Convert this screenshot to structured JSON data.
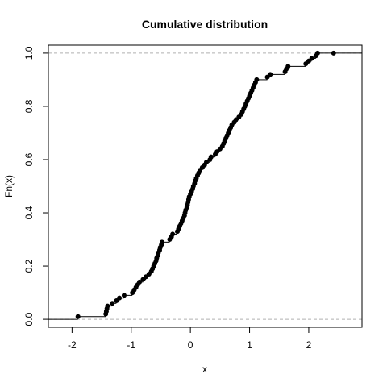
{
  "chart_data": {
    "type": "scatter",
    "title": "Cumulative distribution",
    "xlabel": "x",
    "ylabel": "Fn(x)",
    "xlim": [
      -2.4,
      2.9
    ],
    "ylim": [
      -0.03,
      1.03
    ],
    "grid": false,
    "x_ticks": [
      {
        "value": -2,
        "label": "-2"
      },
      {
        "value": -1,
        "label": "-1"
      },
      {
        "value": 0,
        "label": "0"
      },
      {
        "value": 1,
        "label": "1"
      },
      {
        "value": 2,
        "label": "2"
      }
    ],
    "y_ticks": [
      {
        "value": 0.0,
        "label": "0.0"
      },
      {
        "value": 0.2,
        "label": "0.2"
      },
      {
        "value": 0.4,
        "label": "0.4"
      },
      {
        "value": 0.6,
        "label": "0.6"
      },
      {
        "value": 0.8,
        "label": "0.8"
      },
      {
        "value": 1.0,
        "label": "1.0"
      }
    ],
    "reference_lines_y": [
      0,
      1
    ],
    "x": [
      -1.9,
      -1.43,
      -1.42,
      -1.41,
      -1.4,
      -1.32,
      -1.25,
      -1.2,
      -1.12,
      -0.98,
      -0.95,
      -0.92,
      -0.89,
      -0.86,
      -0.8,
      -0.75,
      -0.7,
      -0.66,
      -0.64,
      -0.62,
      -0.6,
      -0.58,
      -0.57,
      -0.55,
      -0.54,
      -0.52,
      -0.51,
      -0.49,
      -0.48,
      -0.35,
      -0.32,
      -0.3,
      -0.22,
      -0.2,
      -0.18,
      -0.16,
      -0.14,
      -0.12,
      -0.1,
      -0.09,
      -0.08,
      -0.06,
      -0.05,
      -0.04,
      -0.03,
      -0.02,
      0.0,
      0.02,
      0.04,
      0.05,
      0.07,
      0.08,
      0.1,
      0.12,
      0.14,
      0.16,
      0.2,
      0.24,
      0.27,
      0.33,
      0.35,
      0.42,
      0.45,
      0.5,
      0.54,
      0.56,
      0.58,
      0.6,
      0.62,
      0.64,
      0.66,
      0.68,
      0.7,
      0.74,
      0.77,
      0.82,
      0.86,
      0.88,
      0.9,
      0.92,
      0.94,
      0.96,
      0.98,
      1.0,
      1.02,
      1.04,
      1.06,
      1.08,
      1.1,
      1.12,
      1.3,
      1.35,
      1.6,
      1.62,
      1.65,
      1.95,
      2.0,
      2.05,
      2.12,
      2.15,
      2.42
    ],
    "y": [
      0.01,
      0.02,
      0.03,
      0.04,
      0.05,
      0.06,
      0.07,
      0.08,
      0.09,
      0.1,
      0.11,
      0.12,
      0.13,
      0.14,
      0.15,
      0.16,
      0.17,
      0.18,
      0.19,
      0.2,
      0.21,
      0.22,
      0.23,
      0.24,
      0.25,
      0.26,
      0.27,
      0.28,
      0.29,
      0.3,
      0.31,
      0.32,
      0.33,
      0.34,
      0.35,
      0.36,
      0.37,
      0.38,
      0.39,
      0.4,
      0.41,
      0.42,
      0.43,
      0.44,
      0.45,
      0.46,
      0.47,
      0.48,
      0.49,
      0.5,
      0.51,
      0.52,
      0.53,
      0.54,
      0.55,
      0.56,
      0.57,
      0.58,
      0.59,
      0.6,
      0.61,
      0.62,
      0.63,
      0.64,
      0.65,
      0.66,
      0.67,
      0.68,
      0.69,
      0.7,
      0.71,
      0.72,
      0.73,
      0.74,
      0.75,
      0.76,
      0.77,
      0.78,
      0.79,
      0.8,
      0.81,
      0.82,
      0.83,
      0.84,
      0.85,
      0.86,
      0.87,
      0.88,
      0.89,
      0.9,
      0.91,
      0.92,
      0.93,
      0.94,
      0.95,
      0.96,
      0.97,
      0.98,
      0.99,
      1.0,
      1.0
    ]
  }
}
